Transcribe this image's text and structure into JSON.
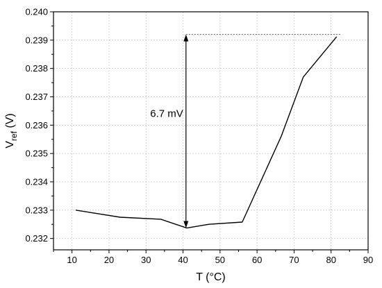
{
  "chart_data": {
    "type": "line",
    "title": "",
    "xlabel": "T (°C)",
    "ylabel_main": "V",
    "ylabel_sub": "ref",
    "ylabel_unit": " (V)",
    "xlim": [
      5,
      90
    ],
    "ylim": [
      0.2316,
      0.24
    ],
    "xticks": [
      10,
      20,
      30,
      40,
      50,
      60,
      70,
      80,
      90
    ],
    "yticks": [
      0.232,
      0.233,
      0.234,
      0.235,
      0.236,
      0.237,
      0.238,
      0.239,
      0.24
    ],
    "ytick_labels": [
      "0.232",
      "0.233",
      "0.234",
      "0.235",
      "0.236",
      "0.237",
      "0.238",
      "0.239",
      "0.240"
    ],
    "grid": true,
    "series": [
      {
        "x": [
          11,
          23,
          34,
          41,
          47,
          56,
          66.5,
          72.5,
          81.5
        ],
        "y": [
          0.233,
          0.23275,
          0.23268,
          0.23237,
          0.2325,
          0.23258,
          0.2356,
          0.2377,
          0.23912
        ],
        "color": "#000000"
      }
    ],
    "annotations": {
      "delta_label": "6.7 mV",
      "arrow_x": 40.8,
      "arrow_from": 0.23237,
      "arrow_to": 0.2392,
      "dotted_ref_y": 0.2392,
      "dotted_x_start": 40.8,
      "dotted_x_end": 82.5
    }
  }
}
